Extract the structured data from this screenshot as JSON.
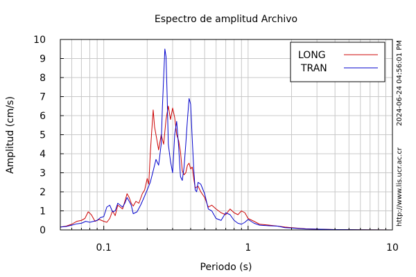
{
  "chart_data": {
    "type": "line",
    "title": "Espectro de amplitud Archivo",
    "xlabel": "Periodo (s)",
    "ylabel": "Amplitud (cm/s)",
    "xscale": "log",
    "xlim": [
      0.05,
      10
    ],
    "ylim": [
      0,
      10
    ],
    "grid": true,
    "legend_position": "top-right",
    "x_ticks": [
      {
        "value": 0.1,
        "label": "0.1"
      },
      {
        "value": 1,
        "label": "1"
      },
      {
        "value": 10,
        "label": "10"
      }
    ],
    "y_ticks": [
      {
        "value": 0,
        "label": "0"
      },
      {
        "value": 1,
        "label": "1"
      },
      {
        "value": 2,
        "label": "2"
      },
      {
        "value": 3,
        "label": "3"
      },
      {
        "value": 4,
        "label": "4"
      },
      {
        "value": 5,
        "label": "5"
      },
      {
        "value": 6,
        "label": "6"
      },
      {
        "value": 7,
        "label": "7"
      },
      {
        "value": 8,
        "label": "8"
      },
      {
        "value": 9,
        "label": "9"
      },
      {
        "value": 10,
        "label": "10"
      }
    ],
    "series": [
      {
        "name": "LONG",
        "color": "#cc0000",
        "points": [
          [
            0.05,
            0.15
          ],
          [
            0.055,
            0.2
          ],
          [
            0.06,
            0.3
          ],
          [
            0.065,
            0.45
          ],
          [
            0.07,
            0.5
          ],
          [
            0.074,
            0.6
          ],
          [
            0.078,
            0.95
          ],
          [
            0.082,
            0.8
          ],
          [
            0.087,
            0.45
          ],
          [
            0.093,
            0.55
          ],
          [
            0.1,
            0.45
          ],
          [
            0.105,
            0.4
          ],
          [
            0.11,
            0.6
          ],
          [
            0.115,
            1.0
          ],
          [
            0.12,
            0.75
          ],
          [
            0.125,
            1.3
          ],
          [
            0.13,
            1.2
          ],
          [
            0.135,
            1.1
          ],
          [
            0.14,
            1.5
          ],
          [
            0.145,
            1.9
          ],
          [
            0.15,
            1.7
          ],
          [
            0.155,
            1.4
          ],
          [
            0.16,
            1.25
          ],
          [
            0.167,
            1.5
          ],
          [
            0.175,
            1.4
          ],
          [
            0.185,
            1.9
          ],
          [
            0.192,
            2.1
          ],
          [
            0.2,
            2.7
          ],
          [
            0.205,
            2.4
          ],
          [
            0.21,
            4.0
          ],
          [
            0.215,
            5.2
          ],
          [
            0.22,
            6.3
          ],
          [
            0.225,
            5.4
          ],
          [
            0.23,
            5.0
          ],
          [
            0.24,
            4.2
          ],
          [
            0.25,
            5.0
          ],
          [
            0.26,
            4.5
          ],
          [
            0.27,
            5.8
          ],
          [
            0.28,
            6.5
          ],
          [
            0.29,
            5.8
          ],
          [
            0.3,
            6.4
          ],
          [
            0.31,
            5.9
          ],
          [
            0.32,
            5.0
          ],
          [
            0.33,
            4.7
          ],
          [
            0.34,
            4.1
          ],
          [
            0.35,
            3.1
          ],
          [
            0.36,
            2.9
          ],
          [
            0.37,
            3.0
          ],
          [
            0.38,
            3.4
          ],
          [
            0.39,
            3.5
          ],
          [
            0.4,
            3.2
          ],
          [
            0.41,
            3.3
          ],
          [
            0.42,
            2.7
          ],
          [
            0.43,
            2.2
          ],
          [
            0.45,
            2.3
          ],
          [
            0.47,
            2.0
          ],
          [
            0.5,
            1.7
          ],
          [
            0.53,
            1.2
          ],
          [
            0.56,
            1.3
          ],
          [
            0.6,
            1.1
          ],
          [
            0.65,
            0.9
          ],
          [
            0.7,
            0.8
          ],
          [
            0.75,
            1.1
          ],
          [
            0.8,
            0.9
          ],
          [
            0.85,
            0.8
          ],
          [
            0.9,
            1.0
          ],
          [
            0.95,
            0.9
          ],
          [
            1.0,
            0.6
          ],
          [
            1.1,
            0.45
          ],
          [
            1.2,
            0.3
          ],
          [
            1.4,
            0.25
          ],
          [
            1.6,
            0.2
          ],
          [
            1.8,
            0.15
          ],
          [
            2.0,
            0.12
          ],
          [
            2.5,
            0.06
          ],
          [
            3.0,
            0.04
          ],
          [
            4.0,
            0.02
          ],
          [
            6.0,
            0.01
          ],
          [
            10.0,
            0.0
          ]
        ]
      },
      {
        "name": "TRAN",
        "color": "#0000cc",
        "points": [
          [
            0.05,
            0.15
          ],
          [
            0.055,
            0.18
          ],
          [
            0.06,
            0.25
          ],
          [
            0.065,
            0.32
          ],
          [
            0.07,
            0.35
          ],
          [
            0.075,
            0.45
          ],
          [
            0.08,
            0.4
          ],
          [
            0.085,
            0.45
          ],
          [
            0.09,
            0.5
          ],
          [
            0.095,
            0.65
          ],
          [
            0.1,
            0.7
          ],
          [
            0.105,
            1.2
          ],
          [
            0.11,
            1.3
          ],
          [
            0.115,
            0.95
          ],
          [
            0.12,
            1.0
          ],
          [
            0.125,
            1.4
          ],
          [
            0.13,
            1.3
          ],
          [
            0.135,
            1.2
          ],
          [
            0.14,
            1.4
          ],
          [
            0.145,
            1.7
          ],
          [
            0.15,
            1.5
          ],
          [
            0.155,
            1.3
          ],
          [
            0.16,
            0.85
          ],
          [
            0.17,
            0.95
          ],
          [
            0.18,
            1.3
          ],
          [
            0.19,
            1.7
          ],
          [
            0.2,
            2.1
          ],
          [
            0.21,
            2.5
          ],
          [
            0.22,
            3.1
          ],
          [
            0.23,
            3.7
          ],
          [
            0.24,
            3.4
          ],
          [
            0.25,
            4.5
          ],
          [
            0.255,
            6.5
          ],
          [
            0.26,
            8.0
          ],
          [
            0.265,
            9.5
          ],
          [
            0.27,
            9.1
          ],
          [
            0.275,
            7.0
          ],
          [
            0.28,
            4.5
          ],
          [
            0.29,
            3.6
          ],
          [
            0.3,
            3.0
          ],
          [
            0.31,
            5.0
          ],
          [
            0.32,
            5.7
          ],
          [
            0.33,
            4.4
          ],
          [
            0.34,
            2.8
          ],
          [
            0.35,
            2.6
          ],
          [
            0.36,
            3.3
          ],
          [
            0.37,
            4.5
          ],
          [
            0.38,
            5.8
          ],
          [
            0.39,
            6.9
          ],
          [
            0.4,
            6.6
          ],
          [
            0.41,
            4.8
          ],
          [
            0.42,
            3.2
          ],
          [
            0.43,
            2.1
          ],
          [
            0.44,
            2.0
          ],
          [
            0.45,
            2.5
          ],
          [
            0.47,
            2.4
          ],
          [
            0.5,
            1.9
          ],
          [
            0.53,
            1.1
          ],
          [
            0.56,
            1.0
          ],
          [
            0.6,
            0.6
          ],
          [
            0.65,
            0.5
          ],
          [
            0.7,
            0.9
          ],
          [
            0.75,
            0.8
          ],
          [
            0.8,
            0.5
          ],
          [
            0.85,
            0.35
          ],
          [
            0.9,
            0.3
          ],
          [
            0.95,
            0.4
          ],
          [
            1.0,
            0.55
          ],
          [
            1.1,
            0.35
          ],
          [
            1.2,
            0.25
          ],
          [
            1.4,
            0.22
          ],
          [
            1.6,
            0.2
          ],
          [
            1.8,
            0.12
          ],
          [
            2.0,
            0.1
          ],
          [
            2.5,
            0.05
          ],
          [
            3.0,
            0.04
          ],
          [
            4.0,
            0.02
          ],
          [
            6.0,
            0.01
          ],
          [
            10.0,
            0.0
          ]
        ]
      }
    ]
  },
  "side_text": {
    "timestamp": "2024-06-24 04:56:01 PM",
    "url": "http://www.lis.ucr.ac.cr"
  }
}
